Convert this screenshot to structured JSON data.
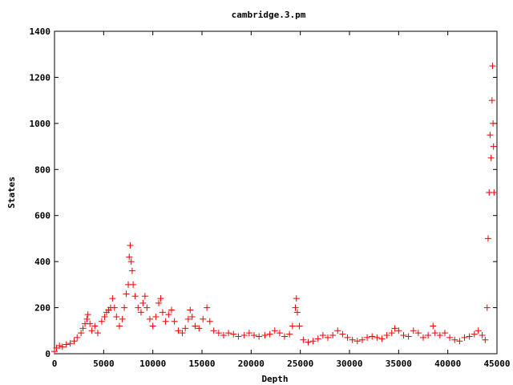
{
  "chart_data": {
    "type": "scatter",
    "title": "cambridge.3.pm",
    "xlabel": "Depth",
    "ylabel": "States",
    "xlim": [
      0,
      45000
    ],
    "ylim": [
      0,
      1400
    ],
    "x_ticks": [
      0,
      5000,
      10000,
      15000,
      20000,
      25000,
      30000,
      35000,
      40000,
      45000
    ],
    "y_ticks": [
      0,
      200,
      400,
      600,
      800,
      1000,
      1200,
      1400
    ],
    "x_tick_labels": [
      "0",
      "5000",
      "10000",
      "15000",
      "20000",
      "25000",
      "30000",
      "35000",
      "40000",
      "45000"
    ],
    "y_tick_labels": [
      "0",
      "200",
      "400",
      "600",
      "800",
      "1000",
      "1200",
      "1400"
    ],
    "grid": false,
    "marker": "plus",
    "color": "#ee0000",
    "series": [
      {
        "points": [
          [
            0,
            10
          ],
          [
            200,
            25
          ],
          [
            500,
            35
          ],
          [
            800,
            30
          ],
          [
            1200,
            40
          ],
          [
            1600,
            45
          ],
          [
            2000,
            55
          ],
          [
            2300,
            70
          ],
          [
            2700,
            90
          ],
          [
            2900,
            110
          ],
          [
            3100,
            130
          ],
          [
            3300,
            150
          ],
          [
            3400,
            170
          ],
          [
            3600,
            130
          ],
          [
            3800,
            100
          ],
          [
            4100,
            120
          ],
          [
            4400,
            90
          ],
          [
            4800,
            140
          ],
          [
            5100,
            160
          ],
          [
            5300,
            180
          ],
          [
            5500,
            190
          ],
          [
            5700,
            200
          ],
          [
            5900,
            240
          ],
          [
            6100,
            200
          ],
          [
            6300,
            160
          ],
          [
            6600,
            120
          ],
          [
            6900,
            150
          ],
          [
            7100,
            200
          ],
          [
            7300,
            260
          ],
          [
            7500,
            300
          ],
          [
            7600,
            420
          ],
          [
            7700,
            470
          ],
          [
            7800,
            400
          ],
          [
            7900,
            360
          ],
          [
            8000,
            300
          ],
          [
            8200,
            250
          ],
          [
            8500,
            200
          ],
          [
            8800,
            180
          ],
          [
            9000,
            220
          ],
          [
            9200,
            250
          ],
          [
            9400,
            200
          ],
          [
            9700,
            150
          ],
          [
            10000,
            120
          ],
          [
            10300,
            160
          ],
          [
            10600,
            220
          ],
          [
            10800,
            240
          ],
          [
            11000,
            180
          ],
          [
            11300,
            140
          ],
          [
            11600,
            170
          ],
          [
            11900,
            190
          ],
          [
            12200,
            140
          ],
          [
            12600,
            100
          ],
          [
            13000,
            90
          ],
          [
            13300,
            110
          ],
          [
            13600,
            150
          ],
          [
            13800,
            190
          ],
          [
            14000,
            160
          ],
          [
            14300,
            120
          ],
          [
            14700,
            110
          ],
          [
            15100,
            150
          ],
          [
            15500,
            200
          ],
          [
            15800,
            140
          ],
          [
            16200,
            100
          ],
          [
            16700,
            90
          ],
          [
            17200,
            80
          ],
          [
            17700,
            90
          ],
          [
            18200,
            85
          ],
          [
            18700,
            75
          ],
          [
            19300,
            80
          ],
          [
            19800,
            90
          ],
          [
            20300,
            80
          ],
          [
            20800,
            75
          ],
          [
            21400,
            80
          ],
          [
            21900,
            85
          ],
          [
            22400,
            100
          ],
          [
            22900,
            90
          ],
          [
            23400,
            75
          ],
          [
            23900,
            85
          ],
          [
            24200,
            120
          ],
          [
            24500,
            200
          ],
          [
            24600,
            240
          ],
          [
            24700,
            180
          ],
          [
            24900,
            120
          ],
          [
            25300,
            60
          ],
          [
            25800,
            50
          ],
          [
            26300,
            55
          ],
          [
            26800,
            65
          ],
          [
            27300,
            80
          ],
          [
            27800,
            70
          ],
          [
            28300,
            80
          ],
          [
            28800,
            100
          ],
          [
            29300,
            85
          ],
          [
            29800,
            70
          ],
          [
            30300,
            60
          ],
          [
            30800,
            55
          ],
          [
            31300,
            60
          ],
          [
            31800,
            70
          ],
          [
            32300,
            75
          ],
          [
            32800,
            70
          ],
          [
            33300,
            65
          ],
          [
            33800,
            80
          ],
          [
            34300,
            90
          ],
          [
            34600,
            110
          ],
          [
            35000,
            100
          ],
          [
            35500,
            80
          ],
          [
            36000,
            75
          ],
          [
            36500,
            100
          ],
          [
            37000,
            90
          ],
          [
            37500,
            70
          ],
          [
            38000,
            80
          ],
          [
            38500,
            120
          ],
          [
            38700,
            90
          ],
          [
            39200,
            80
          ],
          [
            39700,
            90
          ],
          [
            40200,
            70
          ],
          [
            40700,
            60
          ],
          [
            41200,
            55
          ],
          [
            41700,
            70
          ],
          [
            42200,
            75
          ],
          [
            42700,
            85
          ],
          [
            43100,
            100
          ],
          [
            43500,
            80
          ],
          [
            43800,
            60
          ],
          [
            44000,
            200
          ],
          [
            44100,
            500
          ],
          [
            44200,
            700
          ],
          [
            44300,
            950
          ],
          [
            44400,
            850
          ],
          [
            44500,
            1100
          ],
          [
            44550,
            1250
          ],
          [
            44600,
            1000
          ],
          [
            44650,
            900
          ],
          [
            44700,
            700
          ]
        ]
      }
    ]
  }
}
